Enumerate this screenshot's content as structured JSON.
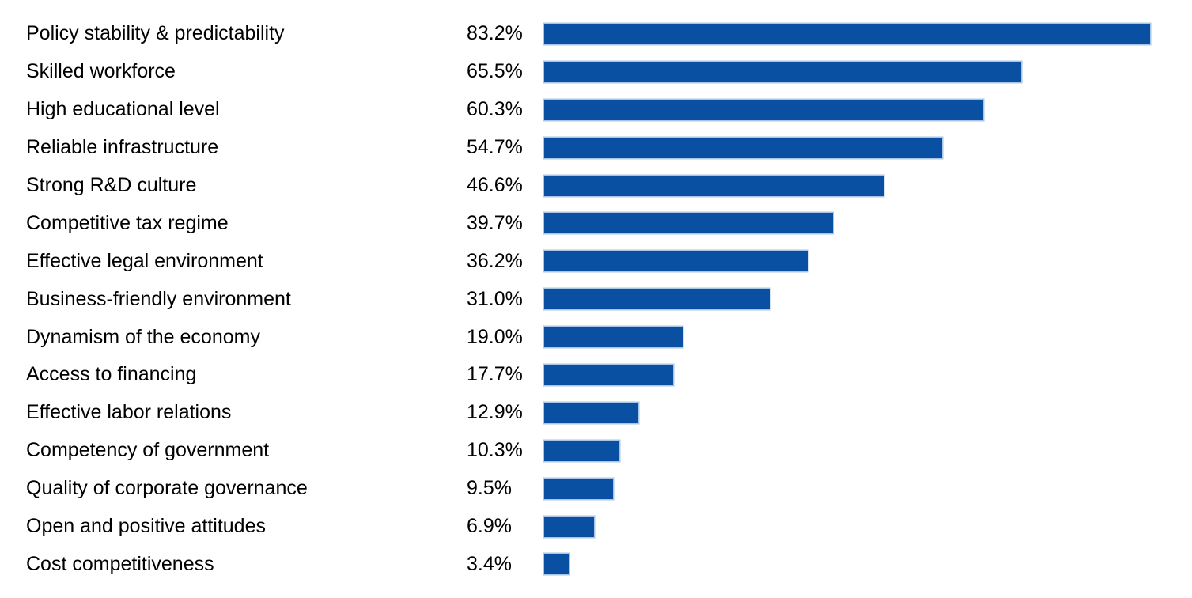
{
  "page": {
    "background_color": "#ffffff",
    "text_color": "#000000"
  },
  "chart_data": {
    "type": "bar",
    "orientation": "horizontal",
    "categories": [
      "Policy stability & predictability",
      "Skilled workforce",
      "High educational level",
      "Reliable infrastructure",
      "Strong R&D culture",
      "Competitive tax regime",
      "Effective legal environment",
      "Business-friendly environment",
      "Dynamism of the economy",
      "Access to financing",
      "Effective labor relations",
      "Competency of government",
      "Quality of corporate governance",
      "Open and positive attitudes",
      "Cost competitiveness"
    ],
    "values": [
      83.2,
      65.5,
      60.3,
      54.7,
      46.6,
      39.7,
      36.2,
      31.0,
      19.0,
      17.7,
      12.9,
      10.3,
      9.5,
      6.9,
      3.4
    ],
    "value_labels": [
      "83.2%",
      "65.5%",
      "60.3%",
      "54.7%",
      "46.6%",
      "39.7%",
      "36.2%",
      "31.0%",
      "19.0%",
      "17.7%",
      "12.9%",
      "10.3%",
      "9.5%",
      "6.9%",
      "3.4%"
    ],
    "bar_color": "#0a50a2",
    "bar_edge_color": "#a9c5e6",
    "xlim": [
      0,
      89
    ],
    "grid": false,
    "legend": false,
    "value_label_position": "left-of-bar"
  }
}
